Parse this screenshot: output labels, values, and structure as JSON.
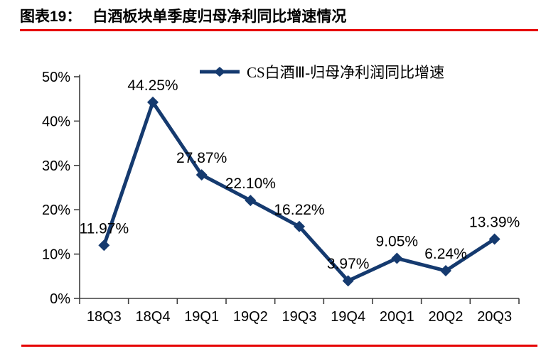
{
  "header": {
    "label": "图表19：",
    "title": "白酒板块单季度归母净利同比增速情况"
  },
  "chart_data": {
    "type": "line",
    "title": "",
    "categories": [
      "18Q3",
      "18Q4",
      "19Q1",
      "19Q2",
      "19Q3",
      "19Q4",
      "20Q1",
      "20Q2",
      "20Q3"
    ],
    "series": [
      {
        "name": "CS白酒Ⅲ-归母净利润同比增速",
        "values": [
          11.97,
          44.25,
          27.87,
          22.1,
          16.22,
          3.97,
          9.05,
          6.24,
          13.39
        ]
      }
    ],
    "data_labels": [
      "11.97%",
      "44.25%",
      "27.87%",
      "22.10%",
      "16.22%",
      "3.97%",
      "9.05%",
      "6.24%",
      "13.39%"
    ],
    "xlabel": "",
    "ylabel": "",
    "ylim": [
      0,
      50
    ],
    "ytick_step": 10,
    "ytick_labels": [
      "0%",
      "10%",
      "20%",
      "30%",
      "40%",
      "50%"
    ],
    "grid": false,
    "legend_position": "top",
    "marker": "diamond",
    "line_color": "#153a6f"
  },
  "colors": {
    "accent_red": "#e60000",
    "line_blue": "#153a6f",
    "axis_color": "#3f3f3f",
    "text_color": "#000000"
  }
}
